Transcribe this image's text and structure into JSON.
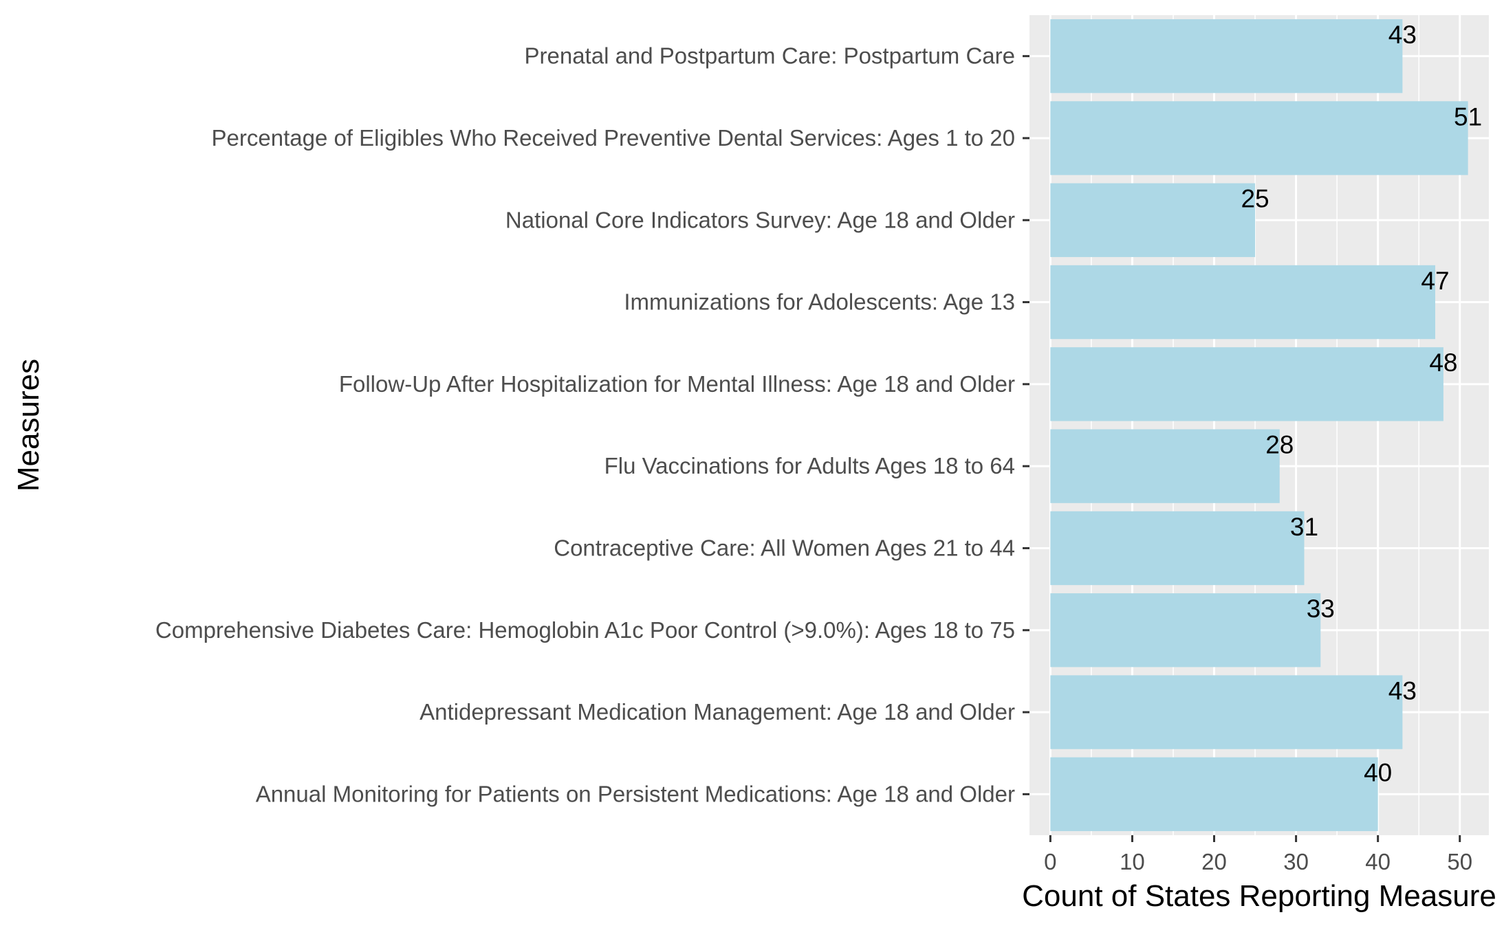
{
  "chart_data": {
    "type": "bar",
    "orientation": "horizontal",
    "categories": [
      "Annual Monitoring for Patients on Persistent Medications: Age 18 and Older",
      "Antidepressant Medication Management: Age 18 and Older",
      "Comprehensive Diabetes Care: Hemoglobin A1c Poor Control (>9.0%): Ages 18 to 75",
      "Contraceptive Care: All Women Ages 21 to 44",
      "Flu Vaccinations for Adults Ages 18 to 64",
      "Follow-Up After Hospitalization for Mental Illness: Age 18 and Older",
      "Immunizations for Adolescents: Age 13",
      "National Core Indicators Survey: Age 18 and Older",
      "Percentage of Eligibles Who Received Preventive Dental Services: Ages 1 to 20",
      "Prenatal and Postpartum Care: Postpartum Care"
    ],
    "values": [
      40,
      43,
      33,
      31,
      28,
      48,
      47,
      25,
      51,
      43
    ],
    "xlabel": "Count of States Reporting Measure",
    "ylabel": "Measures",
    "xlim": [
      -2.55,
      53.55
    ],
    "xticks": [
      0,
      10,
      20,
      30,
      40,
      50
    ],
    "grid": true,
    "legend": "none",
    "bar_color": "#add8e6",
    "panel_color": "#ebebeb",
    "grid_color": "#ffffff"
  }
}
